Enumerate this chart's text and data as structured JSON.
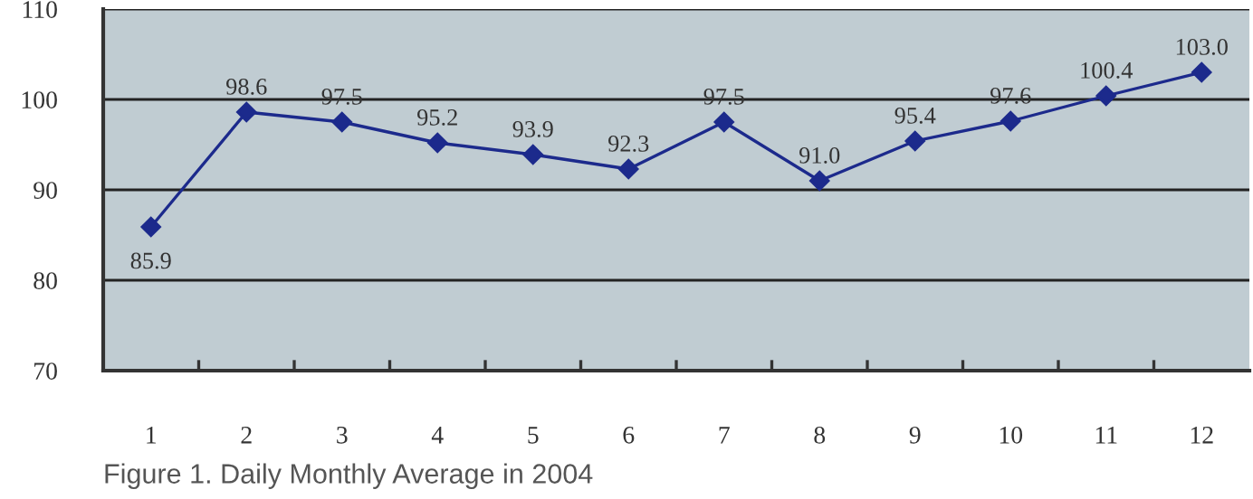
{
  "chart_data": {
    "type": "line",
    "title": "Figure 1. Daily Monthly Average in 2004",
    "categories": [
      "1",
      "2",
      "3",
      "4",
      "5",
      "6",
      "7",
      "8",
      "9",
      "10",
      "11",
      "12"
    ],
    "series": [
      {
        "color": "#1c2a8c",
        "values": [
          85.9,
          98.6,
          97.5,
          95.2,
          93.9,
          92.3,
          97.5,
          91.0,
          95.4,
          97.6,
          100.4,
          103.0
        ],
        "value_labels": [
          "85.9",
          "98.6",
          "97.5",
          "95.2",
          "93.9",
          "92.3",
          "97.5",
          "91.0",
          "95.4",
          "97.6",
          "100.4",
          "103.0"
        ]
      }
    ],
    "ylim": [
      70,
      110
    ],
    "yticks": [
      70,
      80,
      90,
      100,
      110
    ],
    "grid": "y",
    "marker": "diamond",
    "line_style": "solid",
    "legend": false
  }
}
